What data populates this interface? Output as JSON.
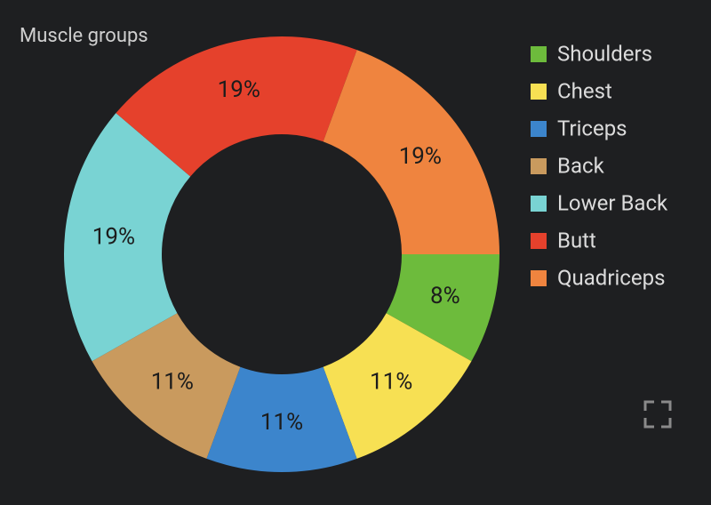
{
  "chart_data": {
    "type": "pie",
    "title": "Muscle groups",
    "categories": [
      "Shoulders",
      "Chest",
      "Triceps",
      "Back",
      "Lower Back",
      "Butt",
      "Quadriceps"
    ],
    "values": [
      8,
      11,
      11,
      11,
      19,
      19,
      19
    ],
    "value_labels": [
      "8%",
      "11%",
      "11%",
      "11%",
      "19%",
      "19%",
      "19%"
    ],
    "colors": [
      "#6dbb3c",
      "#f7e053",
      "#3c85cc",
      "#c99a5e",
      "#79d3d3",
      "#e5412c",
      "#ef843f"
    ],
    "donut": true
  }
}
